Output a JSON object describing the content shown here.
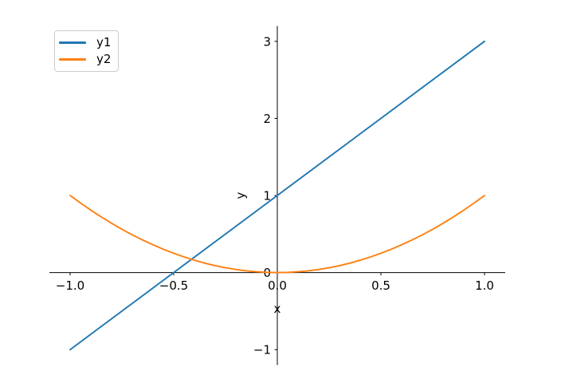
{
  "figure": {
    "background": "#ffffff"
  },
  "colors": {
    "spine": "#000000",
    "tick": "#000000",
    "tick_label": "#000000",
    "legend_border": "#cccccc",
    "series_blue": "#1f77b4",
    "series_orange": "#ff7f0e"
  },
  "chart_data": {
    "type": "line",
    "title": "",
    "xlabel": "x",
    "ylabel": "y",
    "xlim": [
      -1.1,
      1.1
    ],
    "ylim": [
      -1.2,
      3.2
    ],
    "grid": false,
    "axis_style": "spines-at-zero",
    "legend_position": "upper-left",
    "xticks": {
      "values": [
        -1.0,
        -0.5,
        0.0,
        0.5,
        1.0
      ],
      "labels": [
        "−1.0",
        "−0.5",
        "0.0",
        "0.5",
        "1.0"
      ]
    },
    "yticks": {
      "values": [
        -1,
        0,
        1,
        2,
        3
      ],
      "labels": [
        "−1",
        "0",
        "1",
        "2",
        "3"
      ]
    },
    "series": [
      {
        "name": "y1",
        "color": "#1f77b4",
        "points": [
          [
            -1,
            -1
          ],
          [
            1,
            3
          ]
        ]
      },
      {
        "name": "y2",
        "color": "#ff7f0e",
        "points": [
          [
            -1,
            1
          ],
          [
            -0.95,
            0.9025
          ],
          [
            -0.9,
            0.81
          ],
          [
            -0.85,
            0.7225
          ],
          [
            -0.8,
            0.64
          ],
          [
            -0.75,
            0.5625
          ],
          [
            -0.7,
            0.49
          ],
          [
            -0.65,
            0.4225
          ],
          [
            -0.6,
            0.36
          ],
          [
            -0.55,
            0.3025
          ],
          [
            -0.5,
            0.25
          ],
          [
            -0.45,
            0.2025
          ],
          [
            -0.4,
            0.16
          ],
          [
            -0.35,
            0.1225
          ],
          [
            -0.3,
            0.09
          ],
          [
            -0.25,
            0.0625
          ],
          [
            -0.2,
            0.04
          ],
          [
            -0.15,
            0.0225
          ],
          [
            -0.1,
            0.01
          ],
          [
            -0.05,
            0.0025
          ],
          [
            0,
            0
          ],
          [
            0.05,
            0.0025
          ],
          [
            0.1,
            0.01
          ],
          [
            0.15,
            0.0225
          ],
          [
            0.2,
            0.04
          ],
          [
            0.25,
            0.0625
          ],
          [
            0.3,
            0.09
          ],
          [
            0.35,
            0.1225
          ],
          [
            0.4,
            0.16
          ],
          [
            0.45,
            0.2025
          ],
          [
            0.5,
            0.25
          ],
          [
            0.55,
            0.3025
          ],
          [
            0.6,
            0.36
          ],
          [
            0.65,
            0.4225
          ],
          [
            0.7,
            0.49
          ],
          [
            0.75,
            0.5625
          ],
          [
            0.8,
            0.64
          ],
          [
            0.85,
            0.7225
          ],
          [
            0.9,
            0.81
          ],
          [
            0.95,
            0.9025
          ],
          [
            1,
            1
          ]
        ]
      }
    ]
  }
}
